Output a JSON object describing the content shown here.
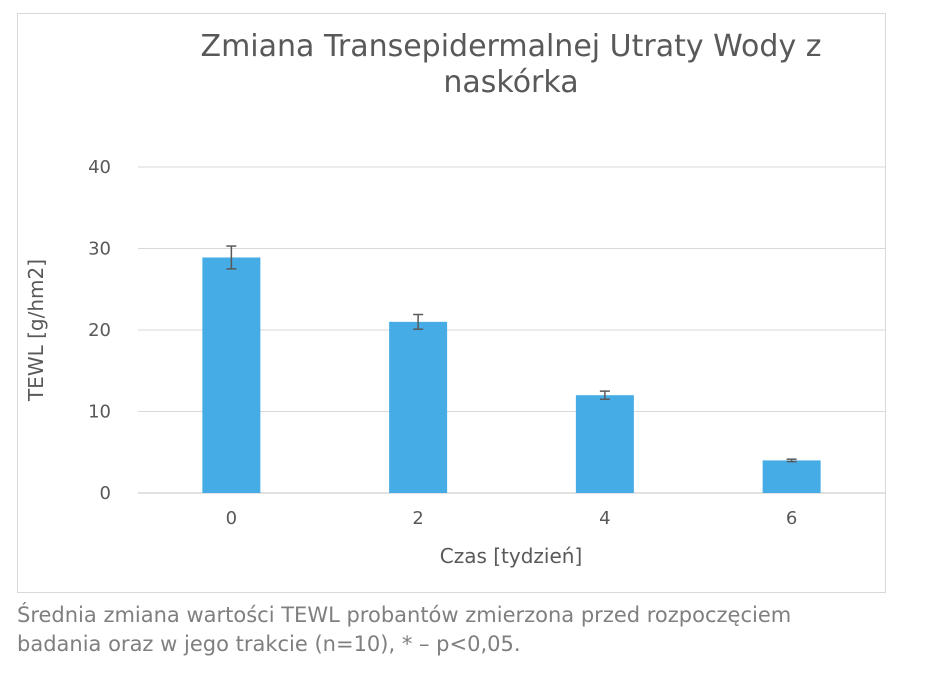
{
  "chart_data": {
    "type": "bar",
    "title_lines": [
      "Zmiana Transepidermalnej Utraty Wody z",
      "naskórka"
    ],
    "xlabel": "Czas [tydzień]",
    "ylabel": "TEWL [g/hm2]",
    "categories": [
      "0",
      "2",
      "4",
      "6"
    ],
    "values": [
      28.9,
      21.0,
      12.0,
      4.0
    ],
    "errors": [
      1.4,
      0.9,
      0.5,
      0.15
    ],
    "ylim": [
      0,
      40
    ],
    "yticks": [
      "0",
      "10",
      "20",
      "30",
      "40"
    ],
    "grid": true,
    "legend": "none",
    "colors": {
      "bar": "#45ace6",
      "grid": "#d9d9d9",
      "error_bar": "#595959"
    }
  },
  "caption": {
    "line1": "Średnia zmiana wartości TEWL probantów zmierzona przed rozpoczęciem",
    "line2": "badania oraz w jego trakcie (n=10), * – p<0,05."
  }
}
